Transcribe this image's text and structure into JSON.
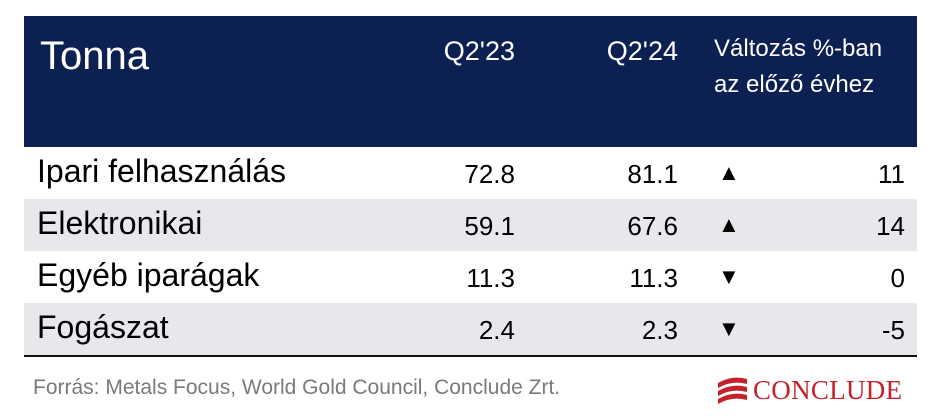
{
  "header": {
    "label": "Tonna",
    "col_q23": "Q2'23",
    "col_q24": "Q2'24",
    "col_change_line1": "Változás %-ban",
    "col_change_line2": "az előző évhez"
  },
  "rows": [
    {
      "label": "Ipari felhasználás",
      "q23": "72.8",
      "q24": "81.1",
      "arrow": "▲",
      "direction": "up",
      "change": "11"
    },
    {
      "label": "Elektronikai",
      "q23": "59.1",
      "q24": "67.6",
      "arrow": "▲",
      "direction": "up",
      "change": "14"
    },
    {
      "label": "Egyéb iparágak",
      "q23": "11.3",
      "q24": "11.3",
      "arrow": "▼",
      "direction": "down",
      "change": "0"
    },
    {
      "label": "Fogászat",
      "q23": "2.4",
      "q24": "2.3",
      "arrow": "▼",
      "direction": "down",
      "change": "-5"
    }
  ],
  "footer": {
    "source": "Forrás: Metals Focus, World Gold Council, Conclude Zrt."
  },
  "logo": {
    "text": "CONCLUDE",
    "icon": "conclude-logo-icon",
    "color": "#c8202a"
  },
  "colors": {
    "header_bg": "#0c2152",
    "row_shade": "#e6e8ec"
  }
}
